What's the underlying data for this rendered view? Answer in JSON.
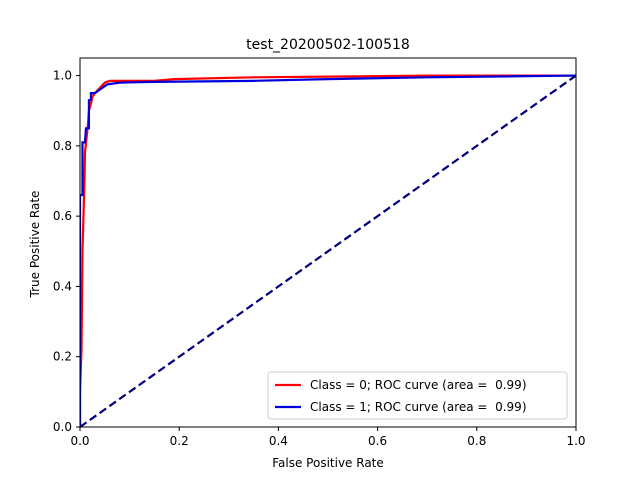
{
  "chart_data": {
    "type": "line",
    "title": "test_20200502-100518",
    "xlabel": "False Positive Rate",
    "ylabel": "True Positive Rate",
    "xlim": [
      0.0,
      1.0
    ],
    "ylim": [
      0.0,
      1.05
    ],
    "xticks": [
      0.0,
      0.2,
      0.4,
      0.6,
      0.8,
      1.0
    ],
    "yticks": [
      0.0,
      0.2,
      0.4,
      0.6,
      0.8,
      1.0
    ],
    "xtick_labels": [
      "0.0",
      "0.2",
      "0.4",
      "0.6",
      "0.8",
      "1.0"
    ],
    "ytick_labels": [
      "0.0",
      "0.2",
      "0.4",
      "0.6",
      "0.8",
      "1.0"
    ],
    "grid": false,
    "legend_position": "lower-right",
    "series": [
      {
        "name": "Class = 0; ROC curve (area =  0.99)",
        "color": "#ff0000",
        "style": "solid",
        "points": [
          [
            0.0,
            0.0
          ],
          [
            0.0,
            0.1
          ],
          [
            0.003,
            0.22
          ],
          [
            0.005,
            0.5
          ],
          [
            0.007,
            0.6
          ],
          [
            0.009,
            0.7
          ],
          [
            0.01,
            0.78
          ],
          [
            0.013,
            0.82
          ],
          [
            0.016,
            0.86
          ],
          [
            0.018,
            0.9
          ],
          [
            0.022,
            0.92
          ],
          [
            0.025,
            0.94
          ],
          [
            0.03,
            0.95
          ],
          [
            0.04,
            0.965
          ],
          [
            0.05,
            0.98
          ],
          [
            0.06,
            0.985
          ],
          [
            0.15,
            0.985
          ],
          [
            0.19,
            0.99
          ],
          [
            0.35,
            0.995
          ],
          [
            0.5,
            0.997
          ],
          [
            0.7,
            1.0
          ],
          [
            1.0,
            1.0
          ]
        ]
      },
      {
        "name": "Class = 1; ROC curve (area =  0.99)",
        "color": "#0000dd",
        "style": "solid",
        "points": [
          [
            0.0,
            0.0
          ],
          [
            0.0,
            0.66
          ],
          [
            0.005,
            0.66
          ],
          [
            0.005,
            0.81
          ],
          [
            0.01,
            0.81
          ],
          [
            0.012,
            0.85
          ],
          [
            0.018,
            0.85
          ],
          [
            0.018,
            0.93
          ],
          [
            0.022,
            0.93
          ],
          [
            0.022,
            0.95
          ],
          [
            0.03,
            0.95
          ],
          [
            0.04,
            0.96
          ],
          [
            0.055,
            0.975
          ],
          [
            0.08,
            0.98
          ],
          [
            0.15,
            0.982
          ],
          [
            0.35,
            0.985
          ],
          [
            0.5,
            0.99
          ],
          [
            0.7,
            0.995
          ],
          [
            1.0,
            1.0
          ]
        ]
      },
      {
        "name": "",
        "color": "#000080",
        "style": "dashed",
        "points": [
          [
            0.0,
            0.0
          ],
          [
            1.0,
            1.0
          ]
        ]
      }
    ]
  }
}
